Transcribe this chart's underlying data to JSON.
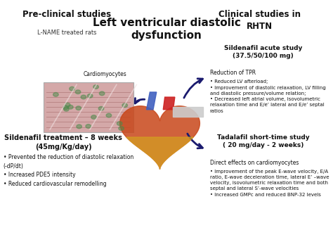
{
  "bg_color": "#ffffff",
  "title_center": "Left ventricular diastolic\ndysfunction",
  "title_left": "Pre-clinical studies",
  "subtitle_left": "L-NAME treated rats",
  "title_right": "Clinical studies in\nRHTN",
  "section_sildenafil_title": "Sildenafil acute study\n(37.5/50/100 mg)",
  "section_sildenafil_sub": "Reduction of TPR",
  "section_sildenafil_bullets": "• Reduced LV afterload;\n• Improvement of diastolic relaxation, LV filling\nand diastolic pressure/volume relation;\n• Decreased left atrial volume, isovolumetric\nrelaxation time and E/e’ lateral and E/e’ septal\nratios",
  "section_tadalafil_title": "Tadalafil short-time study\n( 20 mg/day - 2 weeks)",
  "section_tadalafil_sub": "Direct effects on cardiomyocytes",
  "section_tadalafil_bullets": "• Improvement of the peak E-wave velocity, E/A\nratio, E-wave deceleration time, lateral E’ –wave\nvelocity, isovolumetric relaxation time and both\nseptal and lateral S’-wave velocities\n• Increased GMPc and reduced BNP-32 levels",
  "treatment_title": "Sildenafil treatment – 8 weeks\n(45mg/Kg/day)",
  "treatment_bullets": "• Prevented the reduction of diastolic relaxation\n(-dP/dt)\n• Increased PDE5 intensity\n• Reduced cardiovascular remodelling",
  "cardiomyocytes_label": "Cardiomyocytes",
  "arrow_color": "#1a1a6e",
  "text_color": "#111111"
}
